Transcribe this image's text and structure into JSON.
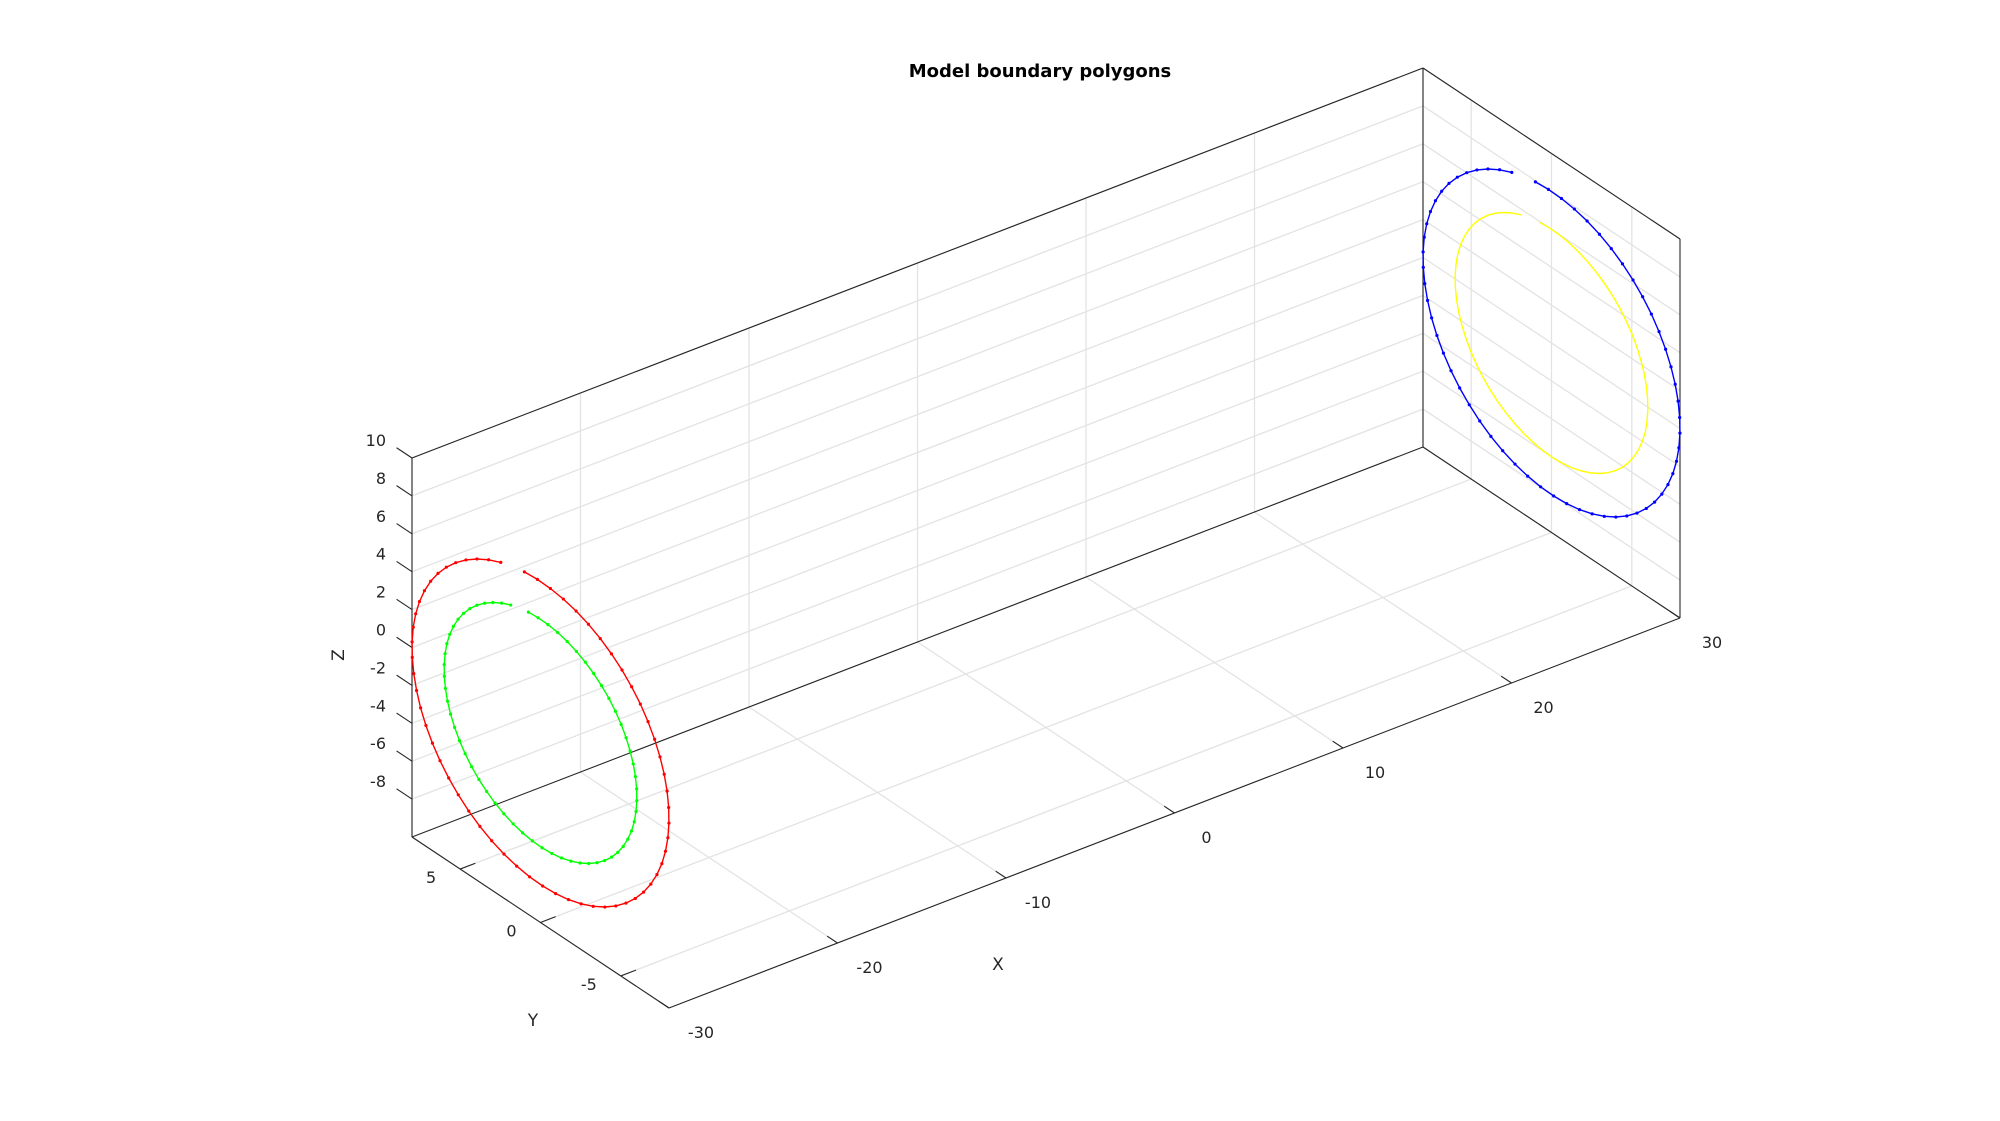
{
  "chart_data": {
    "type": "line",
    "projection": "3d",
    "title": "Model boundary polygons",
    "xlabel": "X",
    "ylabel": "Y",
    "zlabel": "Z",
    "xlim": [
      -30,
      30
    ],
    "ylim": [
      -8,
      8
    ],
    "zlim": [
      -10,
      10
    ],
    "xticks": [
      -30,
      -20,
      -10,
      0,
      10,
      20,
      30
    ],
    "yticks": [
      -5,
      0,
      5
    ],
    "zticks": [
      -8,
      -6,
      -4,
      -2,
      0,
      2,
      4,
      6,
      8,
      10
    ],
    "xtick_labels": [
      "-30",
      "-20",
      "-10",
      "0",
      "10",
      "20",
      "30"
    ],
    "ytick_labels": [
      "-5",
      "0",
      "5"
    ],
    "ztick_labels": [
      "-8",
      "-6",
      "-4",
      "-2",
      "0",
      "2",
      "4",
      "6",
      "8",
      "10"
    ],
    "grid": true,
    "series": [
      {
        "color": "#ff0000",
        "x": -30,
        "radius": 8,
        "markers": true
      },
      {
        "color": "#00ff00",
        "x": -30,
        "radius": 6,
        "markers": true
      },
      {
        "color": "#0000ff",
        "x": 30,
        "radius": 8,
        "markers": true
      },
      {
        "color": "#ffff00",
        "x": 30,
        "radius": 6,
        "markers": false
      }
    ]
  }
}
